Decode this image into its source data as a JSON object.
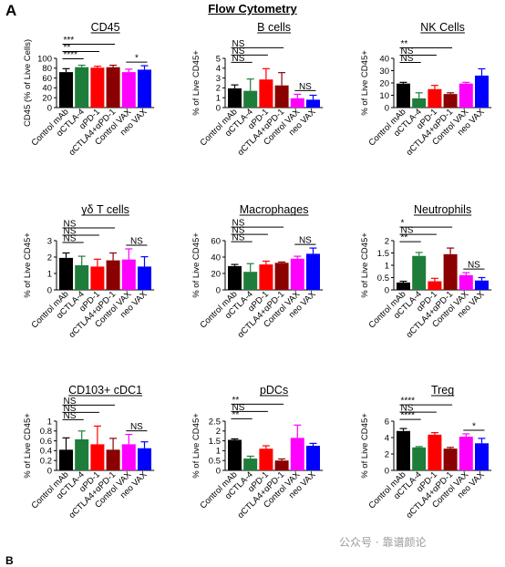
{
  "figure": {
    "panel_letter": "A",
    "title": "Flow Cytometry",
    "watermark": "公众号 · 靠谱颜论",
    "bottom_letter": "B"
  },
  "colors": [
    "#000000",
    "#1e7d3a",
    "#ff0000",
    "#8b0000",
    "#ff00ff",
    "#0000ff"
  ],
  "chart_data": [
    {
      "type": "bar",
      "title": "CD45",
      "ylabel": "CD45 (% of Live Cells)",
      "ylim": [
        0,
        100
      ],
      "yticks": [
        0,
        20,
        40,
        60,
        80,
        100
      ],
      "categories": [
        "Control mAb",
        "αCTLA-4",
        "αPD-1",
        "αCTLA4+αPD-1",
        "Control VAX",
        "neo VAX"
      ],
      "values": [
        72,
        82,
        81,
        82,
        72,
        77
      ],
      "errors": [
        7,
        4,
        3,
        4,
        6,
        8
      ],
      "significance": [
        {
          "a": 0,
          "b": 1,
          "label": "****"
        },
        {
          "a": 0,
          "b": 2,
          "label": "**"
        },
        {
          "a": 0,
          "b": 3,
          "label": "***"
        },
        {
          "a": 4,
          "b": 5,
          "label": "*"
        }
      ]
    },
    {
      "type": "bar",
      "title": "B cells",
      "ylabel": "% of Live CD45+",
      "ylim": [
        0,
        5
      ],
      "yticks": [
        0,
        1,
        2,
        3,
        4,
        5
      ],
      "categories": [
        "Control mAb",
        "αCTLA-4",
        "αPD-1",
        "αCTLA4+αPD-1",
        "Control VAX",
        "neo VAX"
      ],
      "values": [
        1.95,
        1.7,
        2.85,
        2.25,
        0.95,
        0.8
      ],
      "errors": [
        0.35,
        1.2,
        1.1,
        1.3,
        0.4,
        0.45
      ],
      "significance": [
        {
          "a": 0,
          "b": 1,
          "label": "NS"
        },
        {
          "a": 0,
          "b": 2,
          "label": "NS"
        },
        {
          "a": 0,
          "b": 3,
          "label": "NS"
        },
        {
          "a": 4,
          "b": 5,
          "label": "NS"
        }
      ]
    },
    {
      "type": "bar",
      "title": "NK Cells",
      "ylabel": "% of Live CD45+",
      "ylim": [
        0,
        40
      ],
      "yticks": [
        0,
        10,
        20,
        30,
        40
      ],
      "categories": [
        "Control mAb",
        "αCTLA-4",
        "αPD-1",
        "αCTLA4+αPD-1",
        "Control VAX",
        "neo VAX"
      ],
      "values": [
        19.5,
        7.5,
        15,
        11,
        19.5,
        26
      ],
      "errors": [
        1,
        4.5,
        3,
        1,
        1,
        5.5
      ],
      "significance": [
        {
          "a": 0,
          "b": 1,
          "label": "NS"
        },
        {
          "a": 0,
          "b": 2,
          "label": "NS"
        },
        {
          "a": 0,
          "b": 3,
          "label": "**"
        }
      ]
    },
    {
      "type": "bar",
      "title": "γδ T cells",
      "ylabel": "% of Live CD45+",
      "ylim": [
        0,
        3
      ],
      "yticks": [
        0,
        1,
        2,
        3
      ],
      "categories": [
        "Control mAb",
        "αCTLA-4",
        "αPD-1",
        "αCTLA4+αPD-1",
        "Control VAX",
        "neo VAX"
      ],
      "values": [
        1.95,
        1.5,
        1.42,
        1.8,
        1.85,
        1.42
      ],
      "errors": [
        0.3,
        0.55,
        0.45,
        0.45,
        0.65,
        0.6
      ],
      "significance": [
        {
          "a": 0,
          "b": 1,
          "label": "NS"
        },
        {
          "a": 0,
          "b": 2,
          "label": "NS"
        },
        {
          "a": 0,
          "b": 3,
          "label": "NS"
        },
        {
          "a": 4,
          "b": 5,
          "label": "NS"
        }
      ]
    },
    {
      "type": "bar",
      "title": "Macrophages",
      "ylabel": "% of Live CD45+",
      "ylim": [
        0,
        60
      ],
      "yticks": [
        0,
        20,
        40,
        60
      ],
      "categories": [
        "Control mAb",
        "αCTLA-4",
        "αPD-1",
        "αCTLA4+αPD-1",
        "Control VAX",
        "neo VAX"
      ],
      "values": [
        29,
        22,
        31,
        33,
        38,
        44
      ],
      "errors": [
        2,
        10,
        4,
        1,
        3,
        7
      ],
      "significance": [
        {
          "a": 0,
          "b": 1,
          "label": "NS"
        },
        {
          "a": 0,
          "b": 2,
          "label": "NS"
        },
        {
          "a": 0,
          "b": 3,
          "label": "NS"
        },
        {
          "a": 4,
          "b": 5,
          "label": "NS"
        }
      ]
    },
    {
      "type": "bar",
      "title": "Neutrophils",
      "ylabel": "% of Live CD45+",
      "ylim": [
        0,
        2
      ],
      "yticks": [
        0,
        0.5,
        1,
        1.5,
        2
      ],
      "categories": [
        "Control mAb",
        "αCTLA-4",
        "αPD-1",
        "αCTLA4+αPD-1",
        "Control VAX",
        "neo VAX"
      ],
      "values": [
        0.3,
        1.38,
        0.35,
        1.45,
        0.6,
        0.38
      ],
      "errors": [
        0.05,
        0.14,
        0.12,
        0.25,
        0.1,
        0.12
      ],
      "significance": [
        {
          "a": 0,
          "b": 1,
          "label": "**"
        },
        {
          "a": 0,
          "b": 2,
          "label": "NS"
        },
        {
          "a": 0,
          "b": 3,
          "label": "*"
        },
        {
          "a": 4,
          "b": 5,
          "label": "NS"
        }
      ]
    },
    {
      "type": "bar",
      "title": "CD103+ cDC1",
      "ylabel": "% of Live CD45+",
      "ylim": [
        0,
        1
      ],
      "yticks": [
        0,
        0.2,
        0.4,
        0.6,
        0.8,
        1
      ],
      "categories": [
        "Control mAb",
        "αCTLA-4",
        "αPD-1",
        "αCTLA4+αPD-1",
        "Control VAX",
        "neo VAX"
      ],
      "values": [
        0.42,
        0.63,
        0.53,
        0.42,
        0.53,
        0.45
      ],
      "errors": [
        0.24,
        0.17,
        0.37,
        0.23,
        0.2,
        0.13
      ],
      "significance": [
        {
          "a": 0,
          "b": 1,
          "label": "NS"
        },
        {
          "a": 0,
          "b": 2,
          "label": "NS"
        },
        {
          "a": 0,
          "b": 3,
          "label": "NS"
        },
        {
          "a": 4,
          "b": 5,
          "label": "NS"
        }
      ]
    },
    {
      "type": "bar",
      "title": "pDCs",
      "ylabel": "% of Live CD45+",
      "ylim": [
        0,
        2.5
      ],
      "yticks": [
        0,
        0.5,
        1,
        1.5,
        2,
        2.5
      ],
      "categories": [
        "Control mAb",
        "αCTLA-4",
        "αPD-1",
        "αCTLA4+αPD-1",
        "Control VAX",
        "neo VAX"
      ],
      "values": [
        1.55,
        0.6,
        1.1,
        0.5,
        1.65,
        1.25
      ],
      "errors": [
        0.05,
        0.12,
        0.15,
        0.08,
        0.65,
        0.12
      ],
      "significance": [
        {
          "a": 0,
          "b": 1,
          "label": "**"
        },
        {
          "a": 0,
          "b": 2,
          "label": "NS"
        },
        {
          "a": 0,
          "b": 3,
          "label": "**"
        }
      ]
    },
    {
      "type": "bar",
      "title": "Treg",
      "ylabel": "% of Live CD45+",
      "ylim": [
        0,
        6
      ],
      "yticks": [
        0,
        2,
        4,
        6
      ],
      "categories": [
        "Control mAb",
        "αCTLA-4",
        "αPD-1",
        "αCTLA4+αPD-1",
        "Control VAX",
        "neo VAX"
      ],
      "values": [
        4.8,
        2.8,
        4.35,
        2.65,
        4.1,
        3.3
      ],
      "errors": [
        0.3,
        0.1,
        0.25,
        0.15,
        0.35,
        0.6
      ],
      "significance": [
        {
          "a": 0,
          "b": 1,
          "label": "****"
        },
        {
          "a": 0,
          "b": 2,
          "label": "NS"
        },
        {
          "a": 0,
          "b": 3,
          "label": "****"
        },
        {
          "a": 4,
          "b": 5,
          "label": "*"
        }
      ]
    }
  ]
}
